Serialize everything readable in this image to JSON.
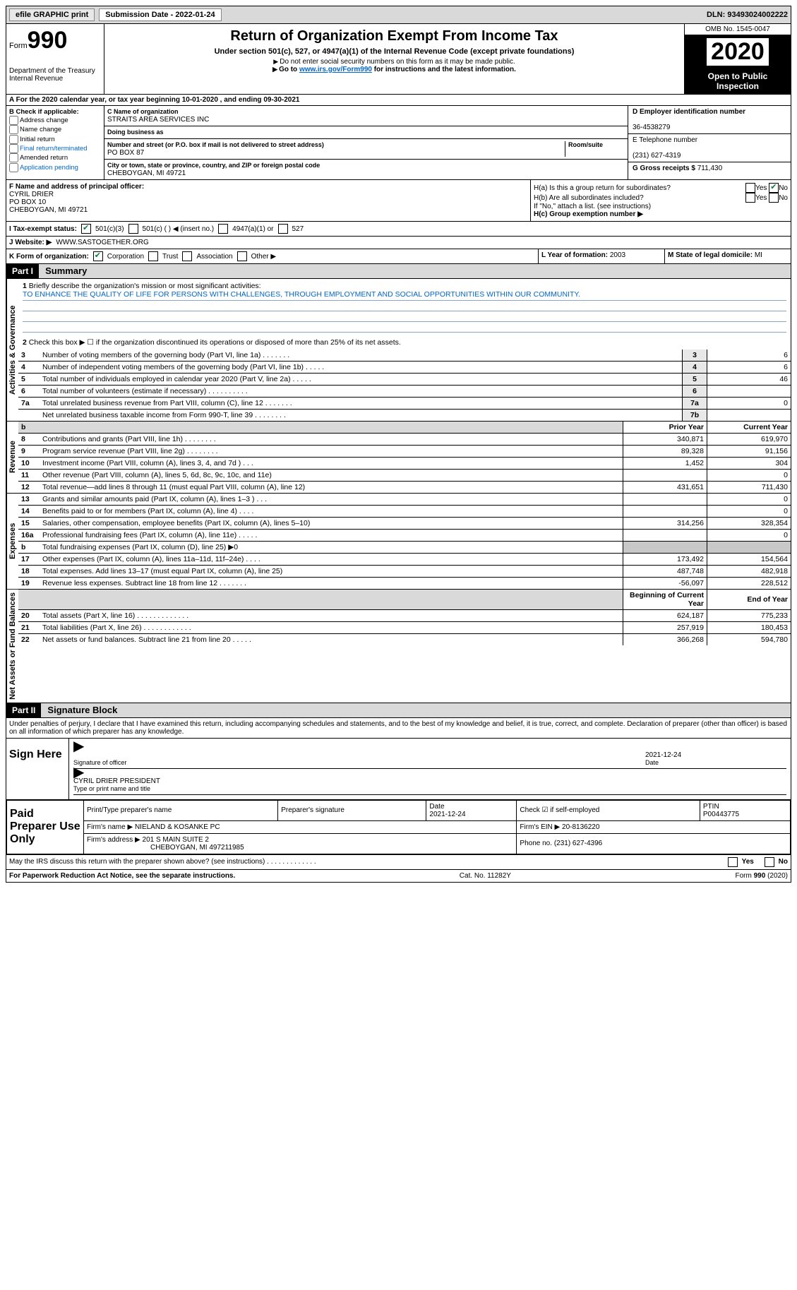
{
  "topbar": {
    "efile_btn": "efile GRAPHIC print",
    "sub_date_label": "Submission Date - 2022-01-24",
    "dln": "DLN: 93493024002222"
  },
  "header": {
    "form_label": "Form",
    "form_number": "990",
    "dept": "Department of the Treasury",
    "irs": "Internal Revenue",
    "title": "Return of Organization Exempt From Income Tax",
    "subtitle": "Under section 501(c), 527, or 4947(a)(1) of the Internal Revenue Code (except private foundations)",
    "note1": "Do not enter social security numbers on this form as it may be made public.",
    "note2_pre": "Go to ",
    "note2_link": "www.irs.gov/Form990",
    "note2_post": " for instructions and the latest information.",
    "omb": "OMB No. 1545-0047",
    "year": "2020",
    "open_public": "Open to Public Inspection"
  },
  "rowA": "A For the 2020 calendar year, or tax year beginning 10-01-2020   , and ending 09-30-2021",
  "boxB": {
    "title": "B Check if applicable:",
    "items": [
      "Address change",
      "Name change",
      "Initial return",
      "Final return/terminated",
      "Amended return",
      "Application pending"
    ]
  },
  "boxC": {
    "name_label": "C Name of organization",
    "name": "STRAITS AREA SERVICES INC",
    "dba_label": "Doing business as",
    "dba": "",
    "addr_label": "Number and street (or P.O. box if mail is not delivered to street address)",
    "room_label": "Room/suite",
    "addr": "PO BOX 87",
    "city_label": "City or town, state or province, country, and ZIP or foreign postal code",
    "city": "CHEBOYGAN, MI  49721"
  },
  "boxD": {
    "label": "D Employer identification number",
    "value": "36-4538279"
  },
  "boxE": {
    "label": "E Telephone number",
    "value": "(231) 627-4319"
  },
  "boxG": {
    "label": "G Gross receipts $",
    "value": "711,430"
  },
  "boxF": {
    "label": "F  Name and address of principal officer:",
    "name": "CYRIL DRIER",
    "addr1": "PO BOX 10",
    "addr2": "CHEBOYGAN, MI  49721"
  },
  "boxH": {
    "ha": "H(a)  Is this a group return for subordinates?",
    "hb": "H(b)  Are all subordinates included?",
    "hb_note": "If \"No,\" attach a list. (see instructions)",
    "hc": "H(c)  Group exemption number ▶",
    "yes": "Yes",
    "no": "No"
  },
  "rowI": {
    "label": "I    Tax-exempt status:",
    "o1": "501(c)(3)",
    "o2": "501(c) (  ) ◀ (insert no.)",
    "o3": "4947(a)(1) or",
    "o4": "527"
  },
  "rowJ": {
    "label": "J   Website: ▶",
    "value": "WWW.SASTOGETHER.ORG"
  },
  "rowK": {
    "label": "K Form of organization:",
    "o1": "Corporation",
    "o2": "Trust",
    "o3": "Association",
    "o4": "Other ▶"
  },
  "rowL": {
    "label": "L Year of formation:",
    "value": "2003"
  },
  "rowM": {
    "label": "M State of legal domicile:",
    "value": "MI"
  },
  "part1": {
    "hdr": "Part I",
    "title": "Summary",
    "q1": "Briefly describe the organization's mission or most significant activities:",
    "mission": "TO ENHANCE THE QUALITY OF LIFE FOR PERSONS WITH CHALLENGES, THROUGH EMPLOYMENT AND SOCIAL OPPORTUNITIES WITHIN OUR COMMUNITY.",
    "q2": "Check this box ▶ ☐  if the organization discontinued its operations or disposed of more than 25% of its net assets."
  },
  "side_labels": {
    "gov": "Activities & Governance",
    "rev": "Revenue",
    "exp": "Expenses",
    "net": "Net Assets or Fund Balances"
  },
  "gov_rows": [
    {
      "n": "3",
      "t": "Number of voting members of the governing body (Part VI, line 1a)   .    .    .    .    .    .    .",
      "r": "3",
      "v": "6"
    },
    {
      "n": "4",
      "t": "Number of independent voting members of the governing body (Part VI, line 1b)   .    .    .    .    .",
      "r": "4",
      "v": "6"
    },
    {
      "n": "5",
      "t": "Total number of individuals employed in calendar year 2020 (Part V, line 2a)   .    .    .    .    .",
      "r": "5",
      "v": "46"
    },
    {
      "n": "6",
      "t": "Total number of volunteers (estimate if necessary)   .    .    .    .    .    .    .    .    .    .",
      "r": "6",
      "v": ""
    },
    {
      "n": "7a",
      "t": "Total unrelated business revenue from Part VIII, column (C), line 12   .    .    .    .    .    .    .",
      "r": "7a",
      "v": "0"
    },
    {
      "n": "",
      "t": "Net unrelated business taxable income from Form 990-T, line 39   .    .    .    .    .    .    .    .",
      "r": "7b",
      "v": ""
    }
  ],
  "col_hdr_prior": "Prior Year",
  "col_hdr_curr": "Current Year",
  "rev_rows": [
    {
      "n": "8",
      "t": "Contributions and grants (Part VIII, line 1h)   .    .    .    .    .    .    .    .",
      "p": "340,871",
      "c": "619,970"
    },
    {
      "n": "9",
      "t": "Program service revenue (Part VIII, line 2g)   .    .    .    .    .    .    .    .",
      "p": "89,328",
      "c": "91,156"
    },
    {
      "n": "10",
      "t": "Investment income (Part VIII, column (A), lines 3, 4, and 7d )   .    .    .",
      "p": "1,452",
      "c": "304"
    },
    {
      "n": "11",
      "t": "Other revenue (Part VIII, column (A), lines 5, 6d, 8c, 9c, 10c, and 11e)",
      "p": "",
      "c": "0"
    },
    {
      "n": "12",
      "t": "Total revenue—add lines 8 through 11 (must equal Part VIII, column (A), line 12)",
      "p": "431,651",
      "c": "711,430"
    }
  ],
  "exp_rows": [
    {
      "n": "13",
      "t": "Grants and similar amounts paid (Part IX, column (A), lines 1–3 )   .    .    .",
      "p": "",
      "c": "0"
    },
    {
      "n": "14",
      "t": "Benefits paid to or for members (Part IX, column (A), line 4)   .    .    .    .",
      "p": "",
      "c": "0"
    },
    {
      "n": "15",
      "t": "Salaries, other compensation, employee benefits (Part IX, column (A), lines 5–10)",
      "p": "314,256",
      "c": "328,354"
    },
    {
      "n": "16a",
      "t": "Professional fundraising fees (Part IX, column (A), line 11e)   .    .    .    .    .",
      "p": "",
      "c": "0"
    },
    {
      "n": "b",
      "t": "Total fundraising expenses (Part IX, column (D), line 25) ▶0",
      "p": "__shade__",
      "c": "__shade__"
    },
    {
      "n": "17",
      "t": "Other expenses (Part IX, column (A), lines 11a–11d, 11f–24e)   .    .    .    .",
      "p": "173,492",
      "c": "154,564"
    },
    {
      "n": "18",
      "t": "Total expenses. Add lines 13–17 (must equal Part IX, column (A), line 25)",
      "p": "487,748",
      "c": "482,918"
    },
    {
      "n": "19",
      "t": "Revenue less expenses. Subtract line 18 from line 12   .    .    .    .    .    .    .",
      "p": "-56,097",
      "c": "228,512"
    }
  ],
  "net_hdr_begin": "Beginning of Current Year",
  "net_hdr_end": "End of Year",
  "net_rows": [
    {
      "n": "20",
      "t": "Total assets (Part X, line 16)   .    .    .    .    .    .    .    .    .    .    .    .    .",
      "p": "624,187",
      "c": "775,233"
    },
    {
      "n": "21",
      "t": "Total liabilities (Part X, line 26)   .    .    .    .    .    .    .    .    .    .    .    .",
      "p": "257,919",
      "c": "180,453"
    },
    {
      "n": "22",
      "t": "Net assets or fund balances. Subtract line 21 from line 20   .    .    .    .    .",
      "p": "366,268",
      "c": "594,780"
    }
  ],
  "part2": {
    "hdr": "Part II",
    "title": "Signature Block",
    "penalty": "Under penalties of perjury, I declare that I have examined this return, including accompanying schedules and statements, and to the best of my knowledge and belief, it is true, correct, and complete. Declaration of preparer (other than officer) is based on all information of which preparer has any knowledge."
  },
  "sign": {
    "label": "Sign Here",
    "sig_label": "Signature of officer",
    "date": "2021-12-24",
    "date_label": "Date",
    "name": "CYRIL DRIER  PRESIDENT",
    "name_label": "Type or print name and title"
  },
  "paid": {
    "label": "Paid Preparer Use Only",
    "h1": "Print/Type preparer's name",
    "h2": "Preparer's signature",
    "h3": "Date",
    "date": "2021-12-24",
    "h4": "Check ☑ if self-employed",
    "h5": "PTIN",
    "ptin": "P00443775",
    "firm_name_l": "Firm's name   ▶",
    "firm_name": "NIELAND & KOSANKE PC",
    "firm_ein_l": "Firm's EIN ▶",
    "firm_ein": "20-8136220",
    "firm_addr_l": "Firm's address ▶",
    "firm_addr": "201 S MAIN SUITE 2",
    "firm_addr2": "CHEBOYGAN, MI  497211985",
    "phone_l": "Phone no.",
    "phone": "(231) 627-4396"
  },
  "may_irs": "May the IRS discuss this return with the preparer shown above? (see instructions)   .    .    .    .    .    .    .    .    .    .    .    .    .",
  "footer": {
    "left": "For Paperwork Reduction Act Notice, see the separate instructions.",
    "mid": "Cat. No. 11282Y",
    "right": "Form 990 (2020)"
  }
}
